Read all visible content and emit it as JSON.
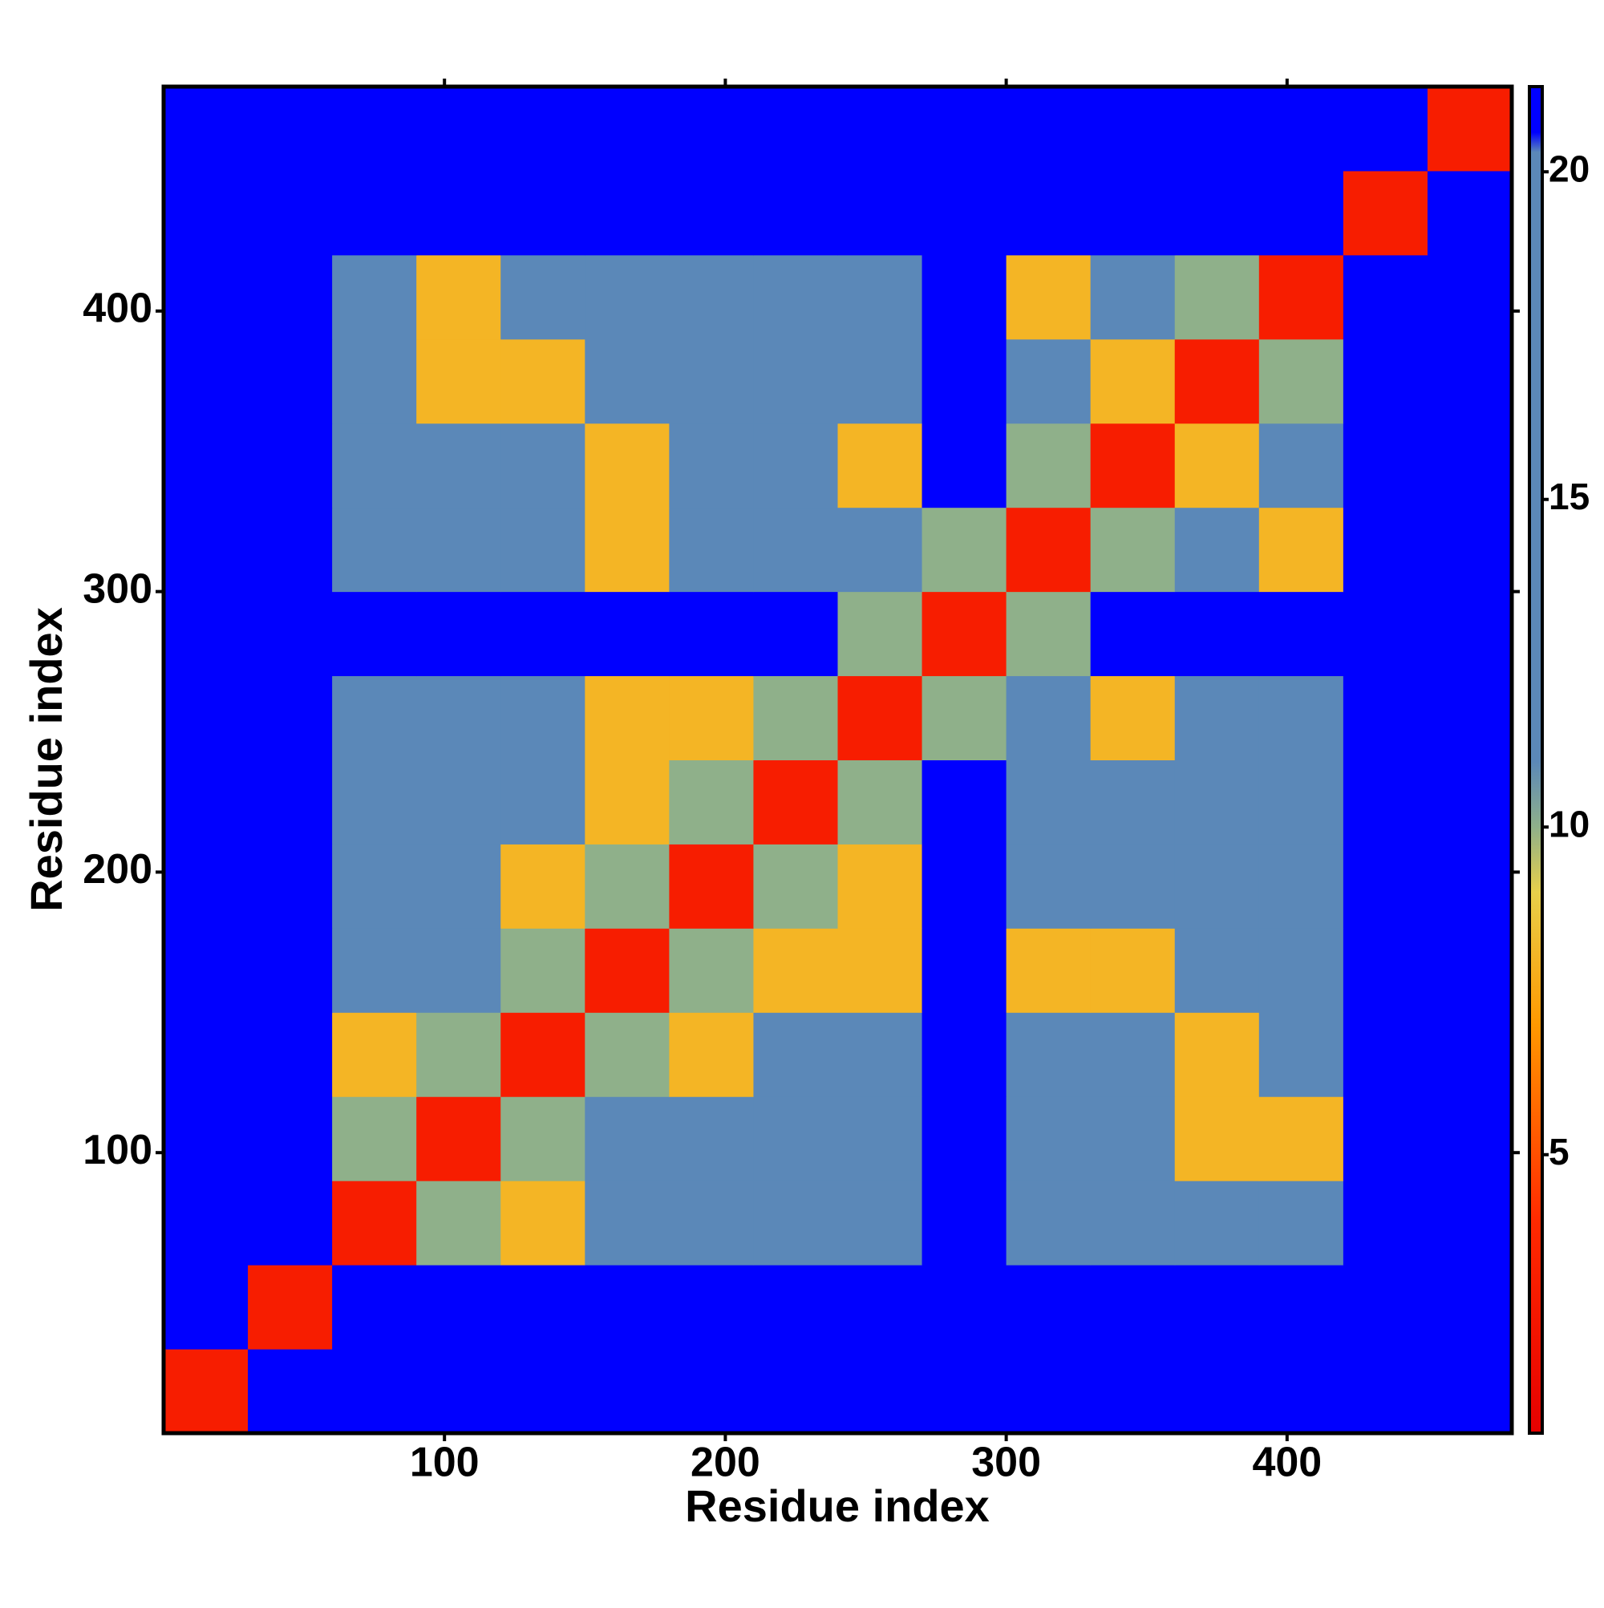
{
  "chart_data": {
    "type": "heatmap",
    "x_label": "Residue index",
    "y_label": "Residue index",
    "x": [
      15,
      45,
      75,
      105,
      135,
      165,
      195,
      225,
      255,
      285,
      315,
      345,
      375,
      405,
      435,
      465
    ],
    "y": [
      15,
      45,
      75,
      105,
      135,
      165,
      195,
      225,
      255,
      285,
      315,
      345,
      375,
      405,
      435,
      465
    ],
    "z": [
      [
        3,
        21,
        21,
        21,
        21,
        21,
        21,
        21,
        21,
        21,
        21,
        21,
        21,
        21,
        21,
        21
      ],
      [
        21,
        3,
        21,
        21,
        21,
        21,
        21,
        21,
        21,
        21,
        21,
        21,
        21,
        21,
        21,
        21
      ],
      [
        21,
        21,
        3,
        10,
        8,
        14,
        14,
        14,
        14,
        21,
        14,
        14,
        14,
        14,
        21,
        21
      ],
      [
        21,
        21,
        10,
        3,
        10,
        14,
        14,
        14,
        14,
        21,
        14,
        14,
        8,
        8,
        21,
        21
      ],
      [
        21,
        21,
        8,
        10,
        3,
        10,
        8,
        14,
        14,
        21,
        14,
        14,
        8,
        14,
        21,
        21
      ],
      [
        21,
        21,
        14,
        14,
        10,
        3,
        10,
        8,
        8,
        21,
        8,
        8,
        14,
        14,
        21,
        21
      ],
      [
        21,
        21,
        14,
        14,
        8,
        10,
        3,
        10,
        8,
        21,
        14,
        14,
        14,
        14,
        21,
        21
      ],
      [
        21,
        21,
        14,
        14,
        14,
        8,
        10,
        3,
        10,
        21,
        14,
        14,
        14,
        14,
        21,
        21
      ],
      [
        21,
        21,
        14,
        14,
        14,
        8,
        8,
        10,
        3,
        10,
        14,
        8,
        14,
        14,
        21,
        21
      ],
      [
        21,
        21,
        21,
        21,
        21,
        21,
        21,
        21,
        10,
        3,
        10,
        21,
        21,
        21,
        21,
        21
      ],
      [
        21,
        21,
        14,
        14,
        14,
        8,
        14,
        14,
        14,
        10,
        3,
        10,
        14,
        8,
        21,
        21
      ],
      [
        21,
        21,
        14,
        14,
        14,
        8,
        14,
        14,
        8,
        21,
        10,
        3,
        8,
        14,
        21,
        21
      ],
      [
        21,
        21,
        14,
        8,
        8,
        14,
        14,
        14,
        14,
        21,
        14,
        8,
        3,
        10,
        21,
        21
      ],
      [
        21,
        21,
        14,
        8,
        14,
        14,
        14,
        14,
        14,
        21,
        8,
        14,
        10,
        3,
        21,
        21
      ],
      [
        21,
        21,
        21,
        21,
        21,
        21,
        21,
        21,
        21,
        21,
        21,
        21,
        21,
        21,
        3,
        21
      ],
      [
        21,
        21,
        21,
        21,
        21,
        21,
        21,
        21,
        21,
        21,
        21,
        21,
        21,
        21,
        21,
        3
      ]
    ],
    "xlim": [
      0,
      480
    ],
    "ylim": [
      0,
      480
    ],
    "xticks": [
      100,
      200,
      300,
      400
    ],
    "yticks": [
      100,
      200,
      300,
      400
    ],
    "clim": [
      0.75,
      21.3
    ],
    "cticks": [
      5,
      10,
      15,
      20
    ],
    "colorscale": [
      [
        0.75,
        "#e60000"
      ],
      [
        4,
        "#ff2a00"
      ],
      [
        7,
        "#ff9900"
      ],
      [
        9,
        "#e8d04a"
      ],
      [
        10,
        "#8fb08a"
      ],
      [
        11,
        "#5b88b8"
      ],
      [
        20.3,
        "#5b88b8"
      ],
      [
        20.6,
        "#0000ff"
      ],
      [
        21.3,
        "#0000ff"
      ]
    ]
  }
}
